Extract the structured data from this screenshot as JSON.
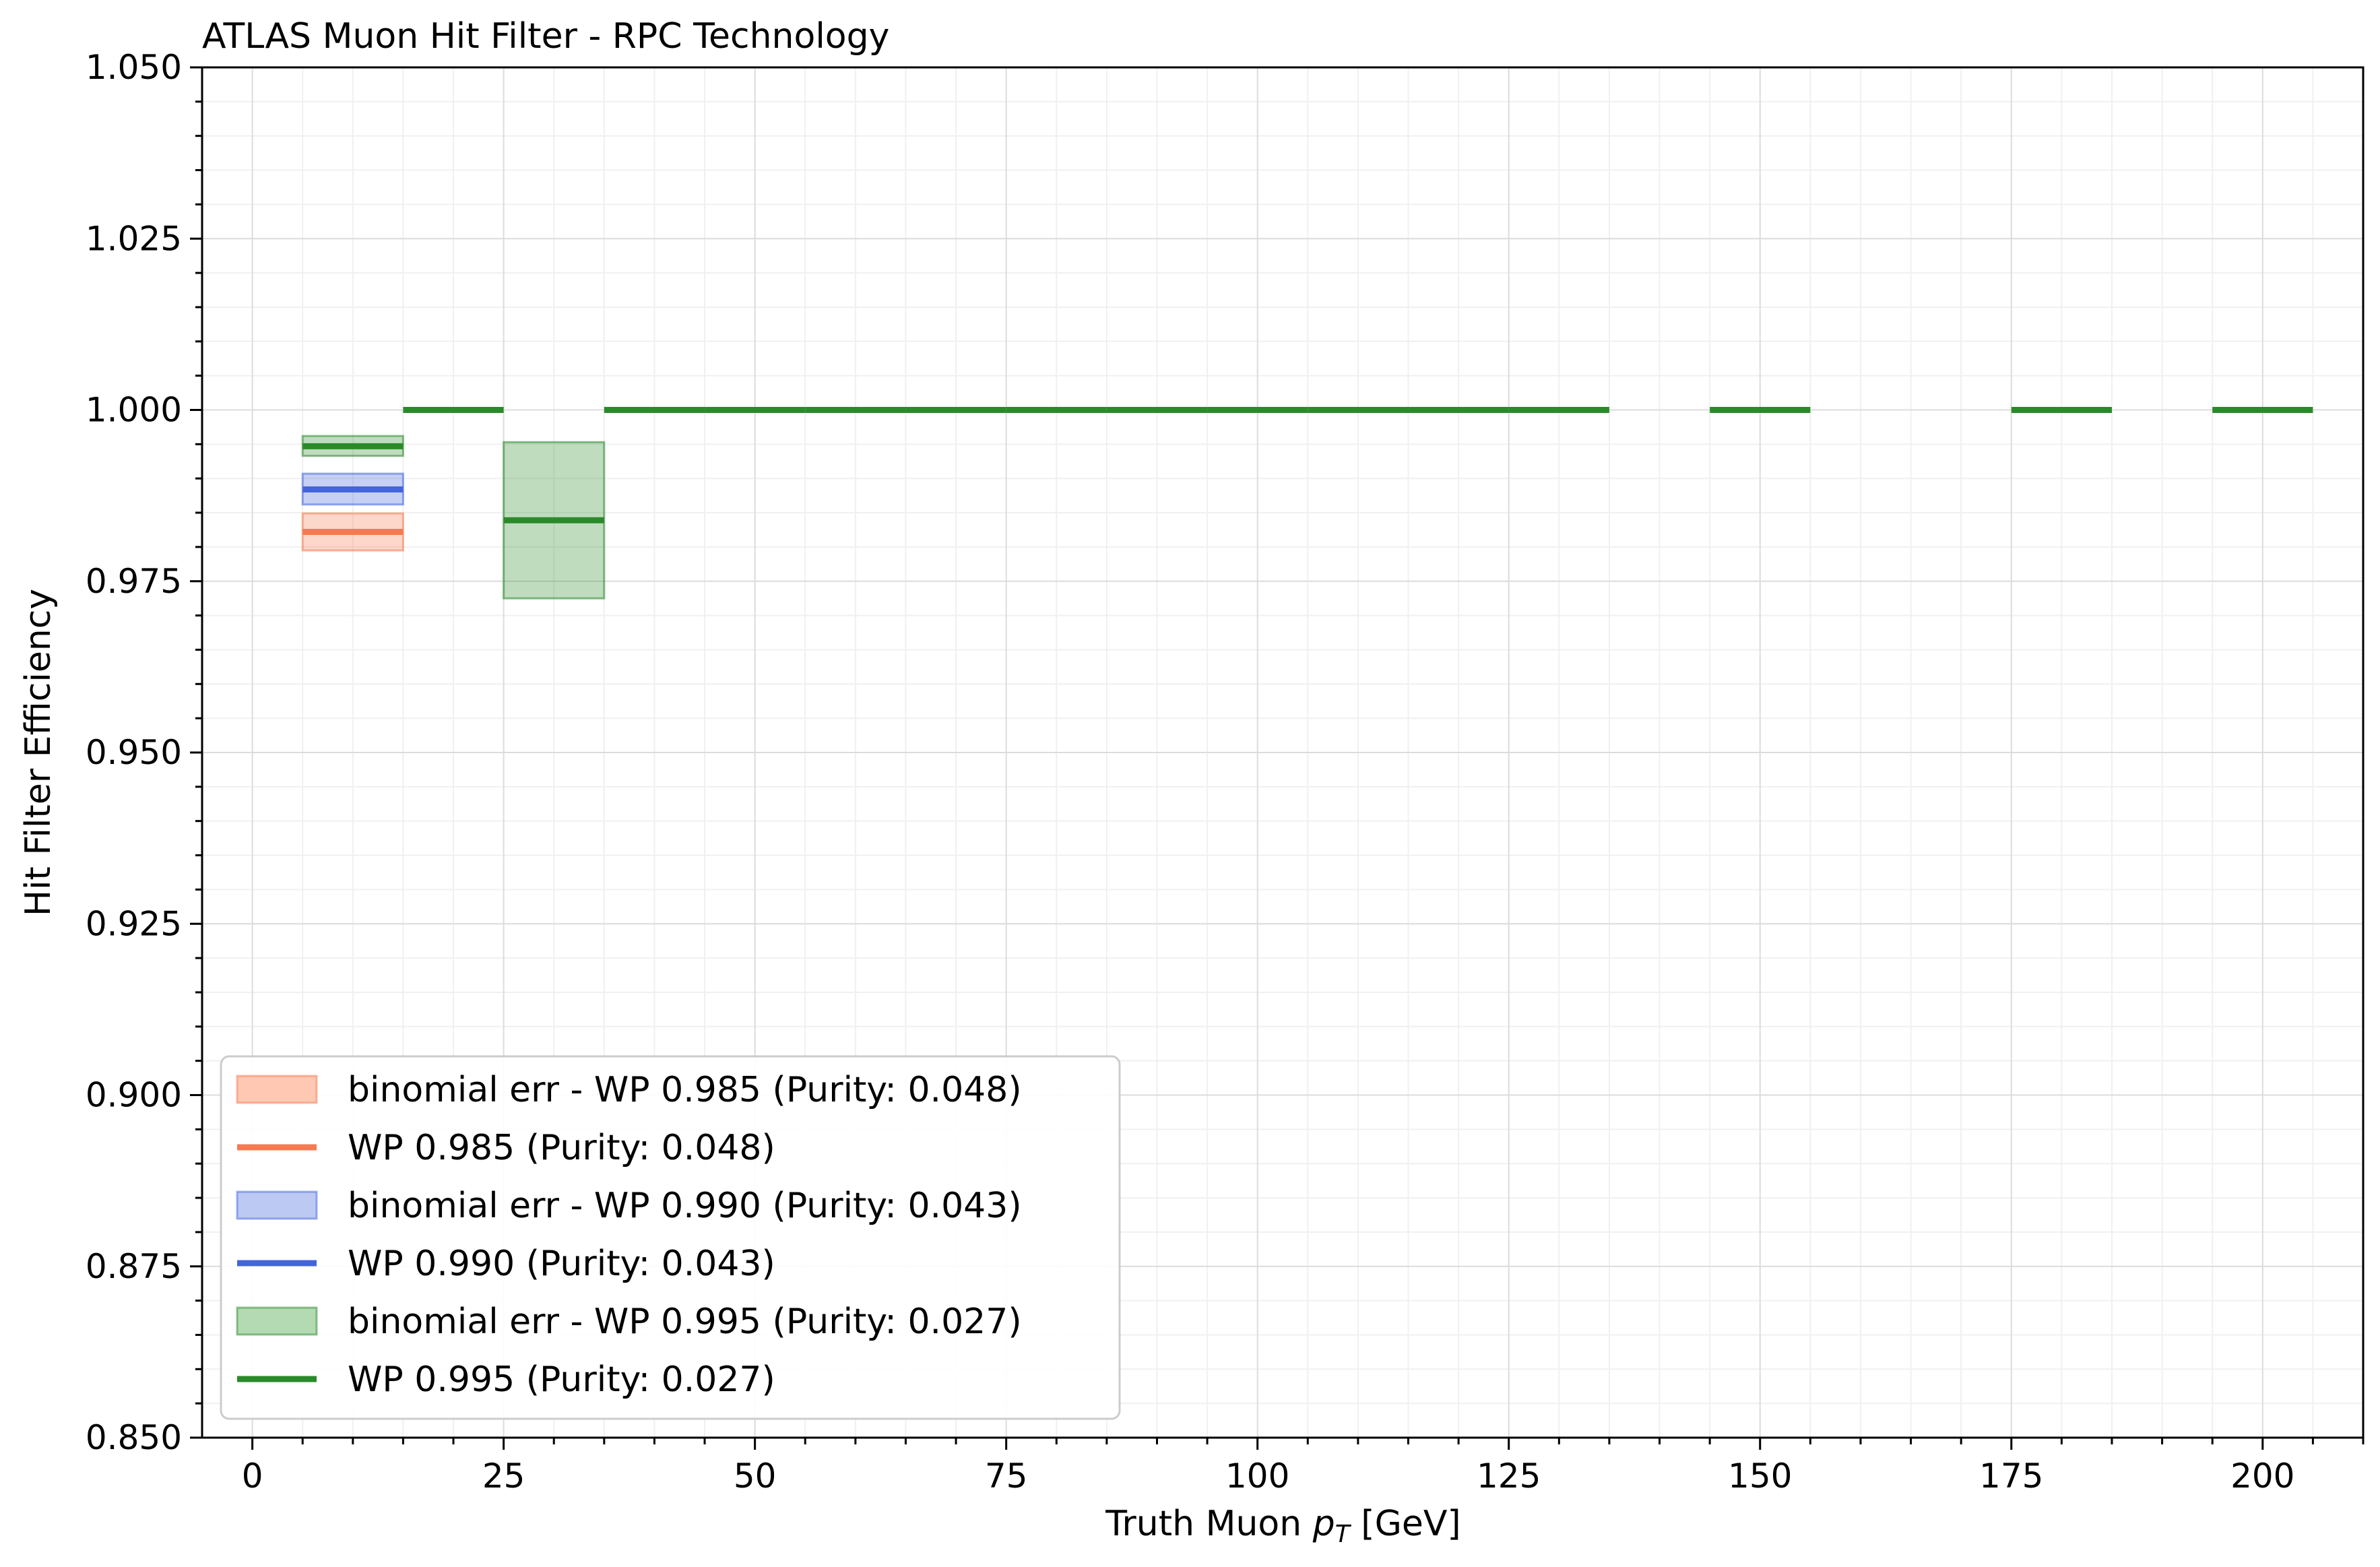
{
  "chart_data": {
    "type": "line",
    "title": "ATLAS Muon Hit Filter - RPC Technology",
    "xlabel_main": "Truth Muon ",
    "xlabel_var": "p",
    "xlabel_sub": "T",
    "xlabel_unit": " [GeV]",
    "ylabel": "Hit Filter Efficiency",
    "xlim": [
      -5,
      210
    ],
    "ylim": [
      0.85,
      1.05
    ],
    "x_ticks": [
      0,
      25,
      50,
      75,
      100,
      125,
      150,
      175,
      200
    ],
    "x_tick_labels": [
      "0",
      "25",
      "50",
      "75",
      "100",
      "125",
      "150",
      "175",
      "200"
    ],
    "y_ticks": [
      0.85,
      0.875,
      0.9,
      0.925,
      0.95,
      0.975,
      1.0,
      1.025,
      1.05
    ],
    "y_tick_labels": [
      "0.850",
      "0.875",
      "0.900",
      "0.925",
      "0.950",
      "0.975",
      "1.000",
      "1.025",
      "1.050"
    ],
    "grid": true,
    "legend_position": "lower-left",
    "series": [
      {
        "name": "WP 0.985 (Purity: 0.048)",
        "err_name": "binomial err - WP 0.985 (Purity: 0.048)",
        "color": "#f47a51",
        "fill": "#ffc8b2",
        "points": [
          {
            "x0": 5,
            "x1": 15,
            "y": 0.9822,
            "lo": 0.9795,
            "hi": 0.9849
          }
        ]
      },
      {
        "name": "WP 0.990 (Purity: 0.043)",
        "err_name": "binomial err - WP 0.990 (Purity: 0.043)",
        "color": "#4364dc",
        "fill": "#bcc9f3",
        "points": [
          {
            "x0": 5,
            "x1": 15,
            "y": 0.9884,
            "lo": 0.9862,
            "hi": 0.9907
          }
        ]
      },
      {
        "name": "WP 0.995 (Purity: 0.027)",
        "err_name": "binomial err - WP 0.995 (Purity: 0.027)",
        "color": "#2a8a2a",
        "fill": "#b3dab3",
        "points": [
          {
            "x0": 5,
            "x1": 15,
            "y": 0.9947,
            "lo": 0.9933,
            "hi": 0.9962
          },
          {
            "x0": 15,
            "x1": 25,
            "y": 1.0,
            "lo": 1.0,
            "hi": 1.0
          },
          {
            "x0": 25,
            "x1": 35,
            "y": 0.9839,
            "lo": 0.9725,
            "hi": 0.9953
          },
          {
            "x0": 35,
            "x1": 45,
            "y": 1.0,
            "lo": 1.0,
            "hi": 1.0
          },
          {
            "x0": 45,
            "x1": 55,
            "y": 1.0,
            "lo": 1.0,
            "hi": 1.0
          },
          {
            "x0": 55,
            "x1": 65,
            "y": 1.0,
            "lo": 1.0,
            "hi": 1.0
          },
          {
            "x0": 65,
            "x1": 75,
            "y": 1.0,
            "lo": 1.0,
            "hi": 1.0
          },
          {
            "x0": 75,
            "x1": 85,
            "y": 1.0,
            "lo": 1.0,
            "hi": 1.0
          },
          {
            "x0": 85,
            "x1": 95,
            "y": 1.0,
            "lo": 1.0,
            "hi": 1.0
          },
          {
            "x0": 95,
            "x1": 105,
            "y": 1.0,
            "lo": 1.0,
            "hi": 1.0
          },
          {
            "x0": 105,
            "x1": 115,
            "y": 1.0,
            "lo": 1.0,
            "hi": 1.0
          },
          {
            "x0": 115,
            "x1": 125,
            "y": 1.0,
            "lo": 1.0,
            "hi": 1.0
          },
          {
            "x0": 125,
            "x1": 135,
            "y": 1.0,
            "lo": 1.0,
            "hi": 1.0
          },
          {
            "x0": 145,
            "x1": 155,
            "y": 1.0,
            "lo": 1.0,
            "hi": 1.0
          },
          {
            "x0": 175,
            "x1": 185,
            "y": 1.0,
            "lo": 1.0,
            "hi": 1.0
          },
          {
            "x0": 195,
            "x1": 205,
            "y": 1.0,
            "lo": 1.0,
            "hi": 1.0
          }
        ]
      }
    ]
  }
}
